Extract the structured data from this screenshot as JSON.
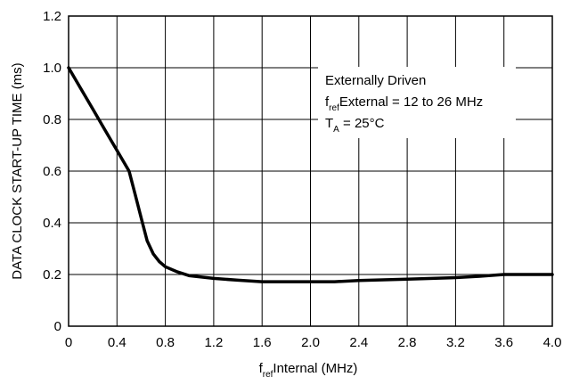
{
  "chart_data": {
    "type": "line",
    "title": "",
    "ylabel": "DATA CLOCK START-UP TIME (ms)",
    "xlabel": {
      "main": "f",
      "sub": "ref",
      "rest": "Internal (MHz)"
    },
    "xlim": [
      0,
      4.0
    ],
    "ylim": [
      0,
      1.2
    ],
    "grid": true,
    "x_ticks": [
      "0",
      "0.4",
      "0.8",
      "1.2",
      "1.6",
      "2.0",
      "2.4",
      "2.8",
      "3.2",
      "3.6",
      "4.0"
    ],
    "y_ticks": [
      "0",
      "0.2",
      "0.4",
      "0.6",
      "0.8",
      "1.0",
      "1.2"
    ],
    "x_tick_values": [
      0,
      0.4,
      0.8,
      1.2,
      1.6,
      2.0,
      2.4,
      2.8,
      3.2,
      3.6,
      4.0
    ],
    "y_tick_values": [
      0,
      0.2,
      0.4,
      0.6,
      0.8,
      1.0,
      1.2
    ],
    "annotation": {
      "line1": "Externally Driven",
      "line2_main": "f",
      "line2_sub": "ref",
      "line2_rest": "External = 12 to 26 MHz",
      "line3_main": "T",
      "line3_sub": "A",
      "line3_rest": " = 25°C"
    },
    "series": [
      {
        "x": [
          0,
          0.1,
          0.2,
          0.3,
          0.4,
          0.5,
          0.55,
          0.6,
          0.65,
          0.7,
          0.75,
          0.8,
          0.9,
          1.0,
          1.2,
          1.4,
          1.6,
          2.0,
          2.2,
          2.4,
          2.8,
          3.2,
          3.4,
          3.6,
          4.0
        ],
        "y": [
          1.0,
          0.92,
          0.84,
          0.76,
          0.68,
          0.6,
          0.51,
          0.42,
          0.33,
          0.28,
          0.25,
          0.23,
          0.21,
          0.195,
          0.185,
          0.178,
          0.172,
          0.172,
          0.172,
          0.177,
          0.182,
          0.188,
          0.193,
          0.2,
          0.2
        ]
      }
    ]
  }
}
